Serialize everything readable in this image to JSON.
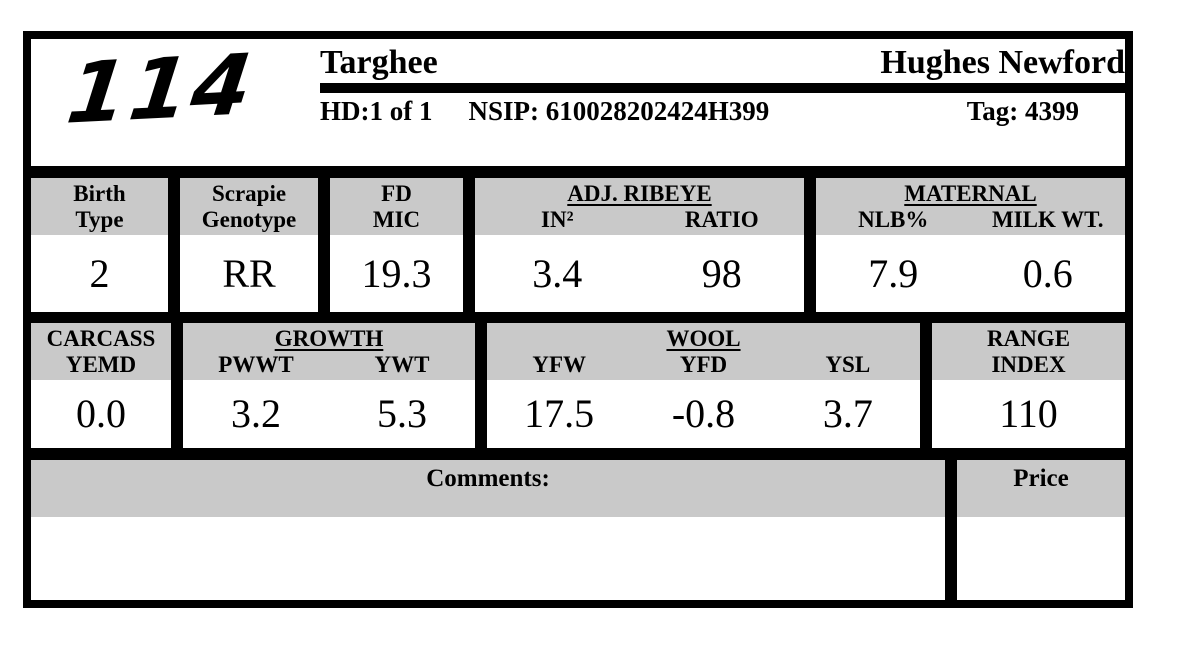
{
  "colors": {
    "band_gray": "#c9c9c9",
    "ink_black": "#000000",
    "paper_white": "#ffffff"
  },
  "header": {
    "lot_number": "114",
    "breed": "Targhee",
    "flock": "Hughes Newford",
    "hd": "HD:1 of 1",
    "nsip": "NSIP: 610028202424H399",
    "tag": "Tag: 4399"
  },
  "row1": {
    "birth_type": {
      "label1": "Birth",
      "label2": "Type",
      "value": "2"
    },
    "scrapie": {
      "label1": "Scrapie",
      "label2": "Genotype",
      "value": "RR"
    },
    "fd_mic": {
      "label1": "FD",
      "label2": "MIC",
      "value": "19.3"
    },
    "adj_ribeye": {
      "group": "ADJ. RIBEYE",
      "col1": {
        "label": "IN²",
        "value": "3.4"
      },
      "col2": {
        "label": "RATIO",
        "value": "98"
      }
    },
    "maternal": {
      "group": "MATERNAL",
      "col1": {
        "label": "NLB%",
        "value": "7.9"
      },
      "col2": {
        "label": "MILK WT.",
        "value": "0.6"
      }
    }
  },
  "row2": {
    "carcass": {
      "label1": "CARCASS",
      "label2": "YEMD",
      "value": "0.0"
    },
    "growth": {
      "group": "GROWTH",
      "col1": {
        "label": "PWWT",
        "value": "3.2"
      },
      "col2": {
        "label": "YWT",
        "value": "5.3"
      }
    },
    "wool": {
      "group": "WOOL",
      "col1": {
        "label": "YFW",
        "value": "17.5"
      },
      "col2": {
        "label": "YFD",
        "value": "-0.8"
      },
      "col3": {
        "label": "YSL",
        "value": "3.7"
      }
    },
    "range_index": {
      "label1": "RANGE",
      "label2": "INDEX",
      "value": "110"
    }
  },
  "row3": {
    "comments_label": "Comments:",
    "comments_value": "",
    "price_label": "Price",
    "price_value": ""
  }
}
